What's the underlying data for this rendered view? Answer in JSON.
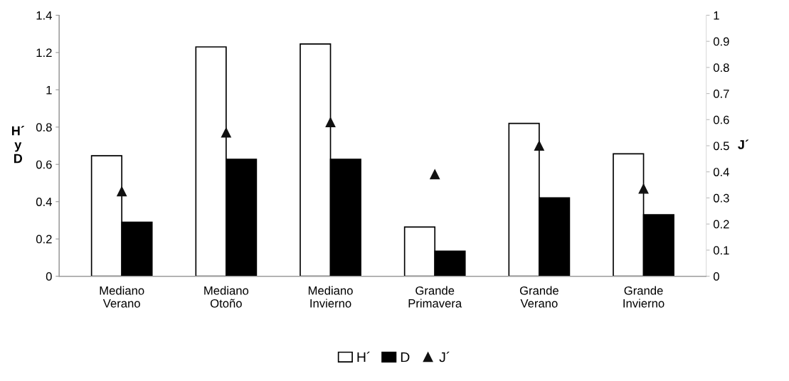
{
  "chart_data": {
    "type": "bar",
    "categories": [
      "Mediano\nVerano",
      "Mediano\nOtoño",
      "Mediano\nInvierno",
      "Grande\nPrimavera",
      "Grande\nVerano",
      "Grande\nInvierno"
    ],
    "ylabel": "H´\ny\nD",
    "y2label": "J´",
    "series": [
      {
        "name": "H´",
        "color": "#ffffff",
        "values": [
          0.646,
          1.23,
          1.246,
          0.264,
          0.82,
          0.657
        ]
      },
      {
        "name": "D",
        "color": "#000000",
        "values": [
          0.29,
          0.627,
          0.627,
          0.134,
          0.42,
          0.33
        ]
      },
      {
        "name": "J´",
        "color": "#111111",
        "type": "scatter",
        "axis": "y2",
        "marker": "triangle",
        "values": [
          0.325,
          0.55,
          0.59,
          0.39,
          0.5,
          0.335
        ]
      }
    ],
    "ylim": [
      0,
      1.4
    ],
    "yticks": [
      0,
      0.2,
      0.4,
      0.6,
      0.8,
      1,
      1.2,
      1.4
    ],
    "y2lim": [
      0,
      1
    ],
    "y2ticks": [
      0,
      0.1,
      0.2,
      0.3,
      0.4,
      0.5,
      0.6,
      0.7,
      0.8,
      0.9,
      1
    ],
    "grid": false,
    "legend": "bottom"
  }
}
